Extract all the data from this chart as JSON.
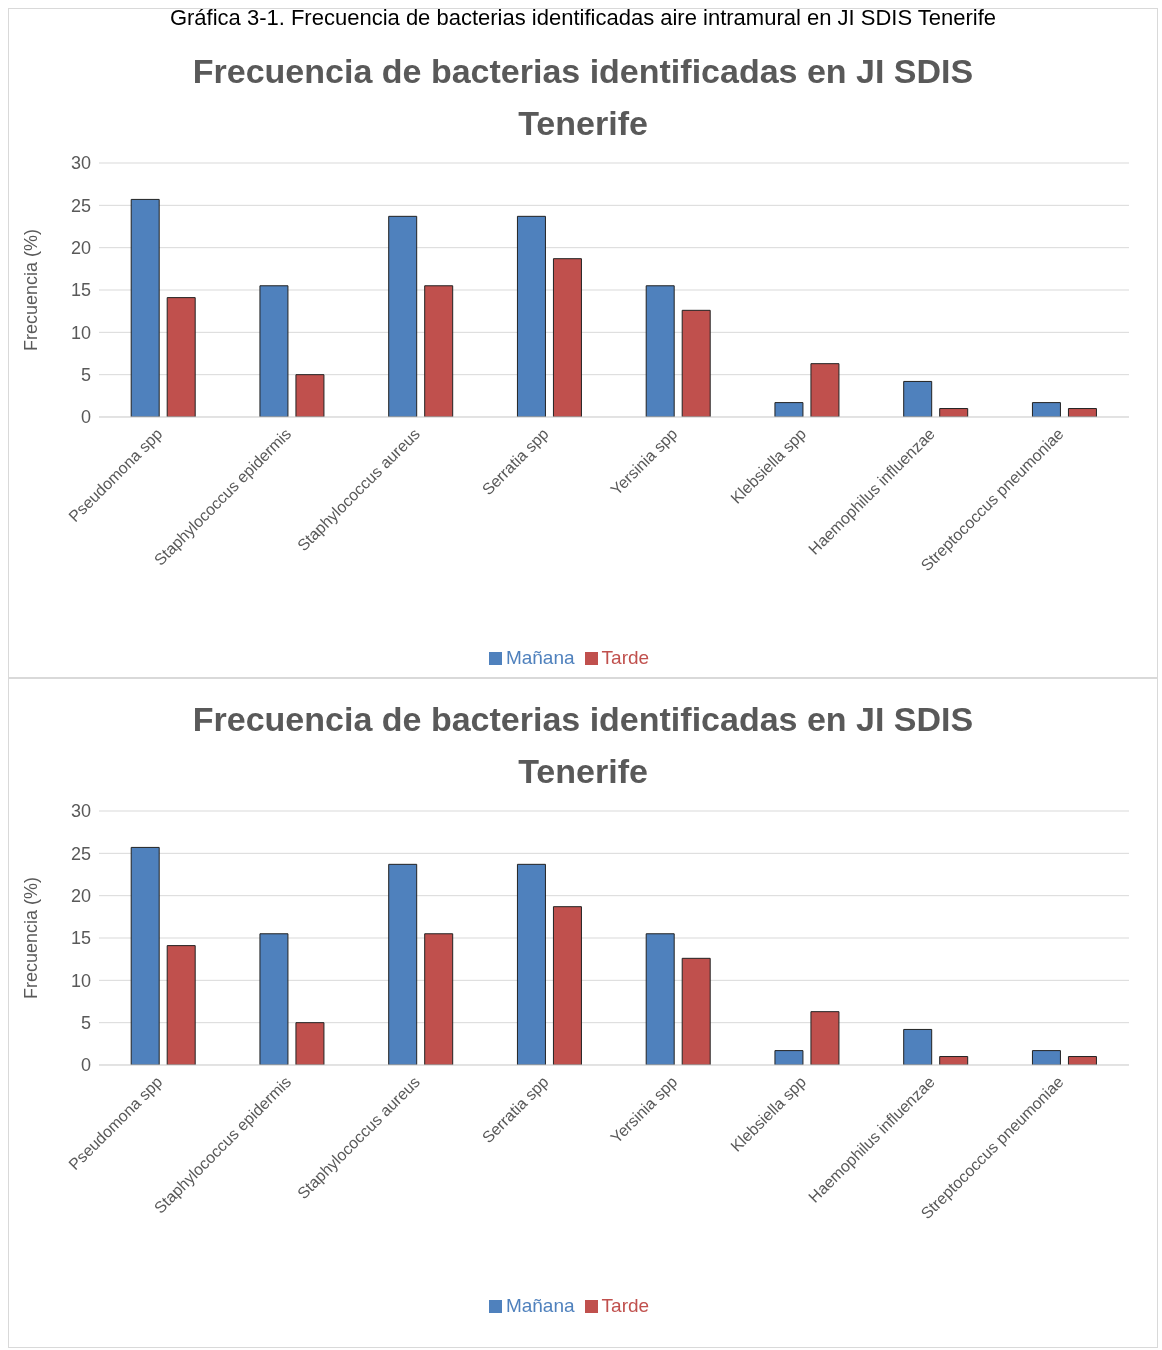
{
  "chart_data": [
    {
      "type": "bar",
      "title": "Frecuencia de bacterias identificadas en JI SDIS Tenerife",
      "annotations": [
        "Gráfica 3-1. Frecuencia de bacterias identificadas aire intramural en JI SDIS Tenerife"
      ],
      "ylabel": "Frecuencia (%)",
      "categories": [
        "Pseudomona spp",
        "Staphylococcus epidermis",
        "Staphylococcus aureus",
        "Serratia spp",
        "Yersinia spp",
        "Klebsiella spp",
        "Haemophilus influenzae",
        "Streptococcus pneumoniae"
      ],
      "series": [
        {
          "name": "Mañana",
          "color": "#4f81bd",
          "values": [
            25.7,
            15.5,
            23.7,
            23.7,
            15.5,
            1.7,
            4.2,
            1.7
          ]
        },
        {
          "name": "Tarde",
          "color": "#c0504d",
          "values": [
            14.1,
            5.0,
            15.5,
            18.7,
            12.6,
            6.3,
            1.0,
            1.0
          ]
        }
      ],
      "ylim": [
        0,
        30
      ],
      "yticks": [
        0,
        5,
        10,
        15,
        20,
        25,
        30
      ],
      "grid": "y",
      "legend": "bottom"
    },
    {
      "type": "bar",
      "title": "Frecuencia de bacterias identificadas en JI SDIS Tenerife",
      "ylabel": "Frecuencia (%)",
      "categories": [
        "Pseudomona spp",
        "Staphylococcus epidermis",
        "Staphylococcus aureus",
        "Serratia spp",
        "Yersinia spp",
        "Klebsiella spp",
        "Haemophilus influenzae",
        "Streptococcus pneumoniae"
      ],
      "series": [
        {
          "name": "Mañana",
          "color": "#4f81bd",
          "values": [
            25.7,
            15.5,
            23.7,
            23.7,
            15.5,
            1.7,
            4.2,
            1.7
          ]
        },
        {
          "name": "Tarde",
          "color": "#c0504d",
          "values": [
            14.1,
            5.0,
            15.5,
            18.7,
            12.6,
            6.3,
            1.0,
            1.0
          ]
        }
      ],
      "ylim": [
        0,
        30
      ],
      "yticks": [
        0,
        5,
        10,
        15,
        20,
        25,
        30
      ],
      "grid": "y",
      "legend": "bottom"
    }
  ]
}
